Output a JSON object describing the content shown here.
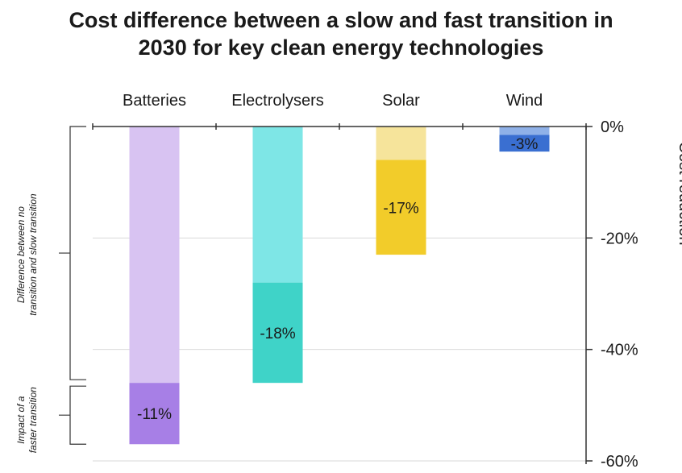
{
  "title_line1": "Cost difference between a slow and fast transition in",
  "title_line2": "2030 for key clean energy technologies",
  "chart_data": {
    "type": "bar",
    "stacking": "stacked (negative direction)",
    "categories": [
      "Batteries",
      "Electrolysers",
      "Solar",
      "Wind"
    ],
    "series": [
      {
        "name": "Difference between no transition and slow transition",
        "values": [
          -46,
          -28,
          -6,
          -1.5
        ],
        "colors": [
          "#d8c3f2",
          "#7ee6e6",
          "#f6e49b",
          "#8fb1e8"
        ]
      },
      {
        "name": "Impact of a faster transition",
        "values": [
          -11,
          -18,
          -17,
          -3
        ],
        "colors": [
          "#a77fe6",
          "#3fd3c8",
          "#f2cc2a",
          "#3a6fd1"
        ]
      }
    ],
    "data_labels": [
      "-11%",
      "-18%",
      "-17%",
      "-3%"
    ],
    "y_axis": {
      "title": "Cost reduction",
      "position": "right",
      "ylim": [
        -60,
        0
      ],
      "ticks": [
        0,
        -20,
        -40,
        -60
      ],
      "tick_labels": [
        "0%",
        "-20%",
        "-40%",
        "-60%"
      ]
    },
    "grid": true,
    "bracket_labels": [
      [
        "Difference between no",
        "transition and slow transition"
      ],
      [
        "Impact of a",
        "faster transition"
      ]
    ]
  }
}
